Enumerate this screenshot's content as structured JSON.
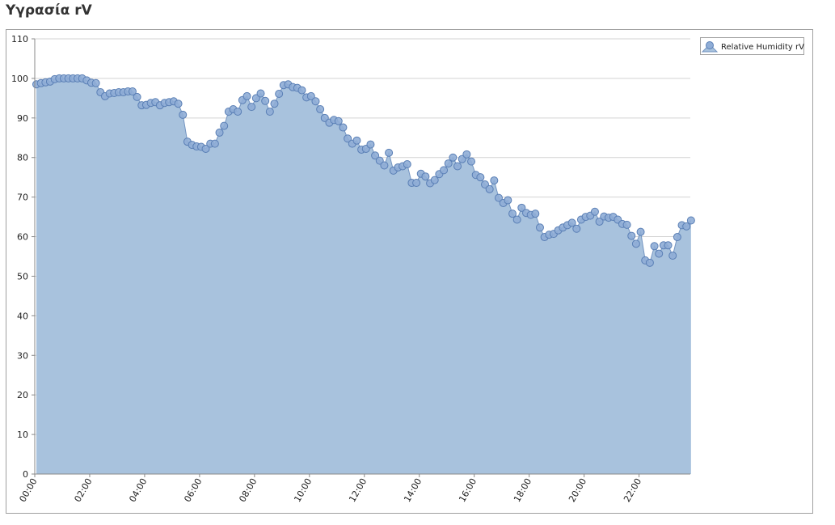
{
  "chart_data": {
    "type": "area",
    "title": "Υγρασία rV",
    "categories": [
      "00:00",
      null,
      null,
      null,
      null,
      null,
      null,
      null,
      null,
      null,
      null,
      null,
      "02:00",
      null,
      null,
      null,
      null,
      null,
      null,
      null,
      null,
      null,
      null,
      null,
      "04:00",
      null,
      null,
      null,
      null,
      null,
      null,
      null,
      null,
      null,
      null,
      null,
      "06:00",
      null,
      null,
      null,
      null,
      null,
      null,
      null,
      null,
      null,
      null,
      null,
      "08:00",
      null,
      null,
      null,
      null,
      null,
      null,
      null,
      null,
      null,
      null,
      null,
      "10:00",
      null,
      null,
      null,
      null,
      null,
      null,
      null,
      null,
      null,
      null,
      null,
      "12:00",
      null,
      null,
      null,
      null,
      null,
      null,
      null,
      null,
      null,
      null,
      null,
      "14:00",
      null,
      null,
      null,
      null,
      null,
      null,
      null,
      null,
      null,
      null,
      null,
      "16:00",
      null,
      null,
      null,
      null,
      null,
      null,
      null,
      null,
      null,
      null,
      null,
      "18:00",
      null,
      null,
      null,
      null,
      null,
      null,
      null,
      null,
      null,
      null,
      null,
      "20:00",
      null,
      null,
      null,
      null,
      null,
      null,
      null,
      null,
      null,
      null,
      null,
      "22:00",
      null,
      null,
      null,
      null,
      null,
      null,
      null,
      null,
      null,
      null,
      null
    ],
    "series": [
      {
        "name": "Relative Humidity rV",
        "color": "#7394c1",
        "values": [
          98.5,
          98.8,
          99,
          99.2,
          99.8,
          100,
          100,
          100,
          100,
          100,
          100,
          99.5,
          98.9,
          98.8,
          96.5,
          95.5,
          96.2,
          96.3,
          96.5,
          96.5,
          96.7,
          96.7,
          95.3,
          93.2,
          93.3,
          93.8,
          94,
          93.2,
          93.8,
          94,
          94.2,
          93.6,
          90.8,
          84,
          83.2,
          82.8,
          82.7,
          82.2,
          83.5,
          83.5,
          86.3,
          88,
          91.6,
          92.2,
          91.6,
          94.5,
          95.5,
          92.8,
          95,
          96.2,
          94.3,
          91.6,
          93.6,
          96.1,
          98.3,
          98.5,
          97.8,
          97.6,
          97,
          95.2,
          95.5,
          94.2,
          92.2,
          90,
          88.8,
          89.5,
          89.2,
          87.6,
          84.8,
          83.5,
          84.3,
          82,
          82.2,
          83.3,
          80.5,
          79.2,
          78,
          81.2,
          76.7,
          77.5,
          77.8,
          78.3,
          73.6,
          73.6,
          75.9,
          75.2,
          73.5,
          74.3,
          75.8,
          76.8,
          78.5,
          80,
          77.8,
          79.6,
          80.8,
          79,
          75.6,
          75,
          73.2,
          72,
          74.2,
          69.8,
          68.5,
          69.2,
          65.8,
          64.3,
          67.3,
          66,
          65.5,
          65.8,
          62.3,
          59.9,
          60.5,
          60.7,
          61.6,
          62.3,
          62.9,
          63.5,
          62,
          64.3,
          65,
          65.3,
          66.3,
          63.8,
          65.1,
          64.8,
          65,
          64.3,
          63.2,
          63,
          60.2,
          58.2,
          61.2,
          54,
          53.4,
          57.6,
          55.7,
          57.8,
          57.8,
          55.2,
          59.9,
          62.9,
          62.6,
          64.1
        ]
      }
    ],
    "ylim": [
      0,
      110
    ],
    "yticks": [
      0,
      10,
      20,
      30,
      40,
      50,
      60,
      70,
      80,
      90,
      100,
      110
    ],
    "grid": true,
    "legend": "top-right"
  }
}
